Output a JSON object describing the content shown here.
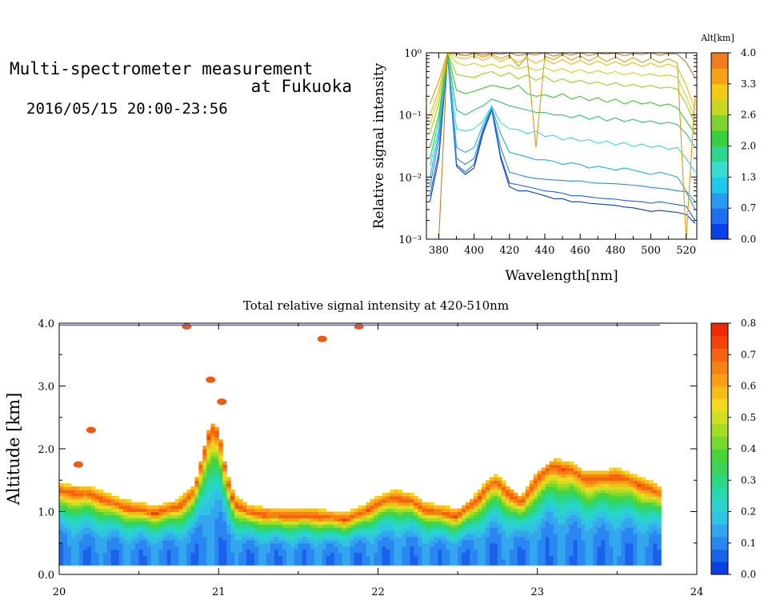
{
  "header": {
    "title_line1": "Multi-spectrometer measurement",
    "title_line2": "at Fukuoka",
    "datetime": "2016/05/15 20:00-23:56"
  },
  "chart_data": [
    {
      "type": "line",
      "title": "",
      "xlabel": "Wavelength[nm]",
      "ylabel": "Relative signal intensity",
      "xlim": [
        373,
        526
      ],
      "ylim": [
        0.001,
        1
      ],
      "yscale": "log",
      "x_ticks": [
        "380",
        "400",
        "420",
        "440",
        "460",
        "480",
        "500",
        "520"
      ],
      "y_ticks": [
        "10⁻³",
        "10⁻²",
        "10⁻¹",
        "10⁰"
      ],
      "colorbar_label": "Alt[km]",
      "colorbar_ticks": [
        "0.0",
        "0.7",
        "1.3",
        "2.0",
        "2.6",
        "3.3",
        "4.0"
      ],
      "x": [
        375,
        380,
        385,
        390,
        395,
        400,
        405,
        410,
        415,
        420,
        425,
        430,
        435,
        440,
        445,
        450,
        455,
        460,
        465,
        470,
        475,
        480,
        485,
        490,
        495,
        500,
        505,
        510,
        515,
        520,
        525
      ],
      "series": [
        {
          "color": "#0b3fc0",
          "values": [
            0.004,
            0.02,
            0.9,
            0.015,
            0.011,
            0.014,
            0.05,
            0.12,
            0.02,
            0.007,
            0.006,
            0.006,
            0.0055,
            0.005,
            0.0045,
            0.0045,
            0.004,
            0.004,
            0.0038,
            0.0037,
            0.0036,
            0.0035,
            0.0033,
            0.0032,
            0.003,
            0.0028,
            0.0029,
            0.0028,
            0.0027,
            0.0025,
            0.0018
          ]
        },
        {
          "color": "#1a63d6",
          "values": [
            0.005,
            0.025,
            0.92,
            0.016,
            0.012,
            0.016,
            0.055,
            0.13,
            0.022,
            0.008,
            0.0075,
            0.007,
            0.0065,
            0.006,
            0.0058,
            0.0055,
            0.005,
            0.005,
            0.0048,
            0.0046,
            0.0045,
            0.0044,
            0.0042,
            0.0041,
            0.004,
            0.0038,
            0.004,
            0.0038,
            0.0036,
            0.0034,
            0.002
          ]
        },
        {
          "color": "#2f87e6",
          "values": [
            0.007,
            0.04,
            0.94,
            0.02,
            0.016,
            0.02,
            0.06,
            0.13,
            0.03,
            0.012,
            0.011,
            0.01,
            0.0095,
            0.0092,
            0.009,
            0.0088,
            0.0086,
            0.0087,
            0.0082,
            0.008,
            0.0079,
            0.0078,
            0.0076,
            0.0074,
            0.0072,
            0.0068,
            0.0066,
            0.0064,
            0.006,
            0.0058,
            0.003
          ]
        },
        {
          "color": "#19b0e4",
          "values": [
            0.01,
            0.05,
            0.95,
            0.03,
            0.025,
            0.03,
            0.07,
            0.13,
            0.05,
            0.025,
            0.023,
            0.021,
            0.019,
            0.019,
            0.018,
            0.016,
            0.017,
            0.016,
            0.014,
            0.015,
            0.014,
            0.013,
            0.014,
            0.013,
            0.012,
            0.011,
            0.012,
            0.011,
            0.01,
            0.006,
            0.004
          ]
        },
        {
          "color": "#3fd8c8",
          "values": [
            0.015,
            0.06,
            0.96,
            0.06,
            0.055,
            0.06,
            0.08,
            0.14,
            0.075,
            0.06,
            0.058,
            0.05,
            0.055,
            0.045,
            0.047,
            0.04,
            0.043,
            0.038,
            0.04,
            0.035,
            0.038,
            0.033,
            0.036,
            0.031,
            0.034,
            0.03,
            0.032,
            0.028,
            0.03,
            0.02,
            0.012
          ]
        },
        {
          "color": "#2cc473",
          "values": [
            0.02,
            0.08,
            0.97,
            0.12,
            0.1,
            0.12,
            0.14,
            0.18,
            0.16,
            0.14,
            0.13,
            0.12,
            0.11,
            0.11,
            0.1,
            0.1,
            0.09,
            0.1,
            0.085,
            0.095,
            0.08,
            0.09,
            0.078,
            0.085,
            0.076,
            0.08,
            0.072,
            0.076,
            0.07,
            0.05,
            0.03
          ]
        },
        {
          "color": "#3cc928",
          "values": [
            0.03,
            0.1,
            0.98,
            0.25,
            0.22,
            0.24,
            0.27,
            0.3,
            0.28,
            0.26,
            0.3,
            0.22,
            0.2,
            0.21,
            0.19,
            0.22,
            0.18,
            0.2,
            0.17,
            0.19,
            0.16,
            0.18,
            0.15,
            0.17,
            0.15,
            0.16,
            0.14,
            0.15,
            0.13,
            0.08,
            0.05
          ]
        },
        {
          "color": "#98d31c",
          "values": [
            0.05,
            0.15,
            0.99,
            0.45,
            0.42,
            0.4,
            0.46,
            0.5,
            0.42,
            0.48,
            0.38,
            0.44,
            0.36,
            0.42,
            0.34,
            0.38,
            0.33,
            0.36,
            0.32,
            0.34,
            0.3,
            0.33,
            0.29,
            0.31,
            0.28,
            0.3,
            0.27,
            0.28,
            0.26,
            0.15,
            0.07
          ]
        },
        {
          "color": "#d4d21a",
          "values": [
            0.07,
            0.2,
            1.0,
            0.7,
            0.62,
            0.68,
            0.6,
            0.66,
            0.57,
            0.64,
            0.55,
            0.6,
            0.52,
            0.58,
            0.5,
            0.56,
            0.48,
            0.54,
            0.47,
            0.52,
            0.46,
            0.5,
            0.44,
            0.48,
            0.43,
            0.46,
            0.42,
            0.44,
            0.4,
            0.2,
            0.09
          ]
        },
        {
          "color": "#eebb10",
          "values": [
            0.1,
            0.25,
            1.0,
            0.85,
            0.8,
            0.9,
            0.75,
            0.88,
            0.72,
            0.85,
            0.7,
            0.82,
            0.68,
            0.8,
            0.66,
            0.78,
            0.65,
            0.76,
            0.64,
            0.74,
            0.63,
            0.72,
            0.62,
            0.7,
            0.6,
            0.68,
            0.59,
            0.66,
            0.58,
            0.3,
            0.12
          ]
        },
        {
          "color": "#e39a16",
          "values": [
            0.15,
            0.35,
            1.0,
            0.95,
            0.9,
            0.97,
            0.85,
            0.95,
            0.8,
            0.92,
            0.6,
            0.9,
            0.03,
            0.88,
            0.78,
            0.93,
            0.76,
            0.9,
            0.74,
            0.88,
            0.72,
            0.86,
            0.71,
            0.84,
            0.7,
            0.82,
            0.69,
            0.8,
            0.68,
            0.001,
            0.2
          ]
        },
        {
          "color": "#cf7c2a",
          "values": [
            0.001,
            0.001,
            1.0,
            0.98,
            0.9,
            1.0,
            0.92,
            0.98,
            0.95,
            1.0,
            0.9,
            0.96,
            0.93,
            1.0,
            0.88,
            0.97,
            0.92,
            1.0,
            0.9,
            0.98,
            0.95,
            0.99,
            0.9,
            0.97,
            0.94,
            1.0,
            0.91,
            0.98,
            0.95,
            0.7,
            0.4
          ]
        }
      ]
    },
    {
      "type": "heatmap",
      "title": "Total relative signal intensity at 420-510nm",
      "xlabel": "",
      "ylabel": "Altitude [km]",
      "xlim": [
        20,
        24
      ],
      "ylim": [
        0,
        4
      ],
      "x_ticks": [
        "20",
        "21",
        "22",
        "23",
        "24"
      ],
      "y_ticks": [
        "0.0",
        "1.0",
        "2.0",
        "3.0",
        "4.0"
      ],
      "colorbar_ticks": [
        "0.0",
        "0.1",
        "0.2",
        "0.3",
        "0.4",
        "0.5",
        "0.6",
        "0.7",
        "0.8"
      ],
      "data_start_alt": 0.15,
      "data_end_time": 23.77,
      "cloud_base": {
        "time": [
          20.0,
          20.2,
          20.4,
          20.6,
          20.75,
          20.85,
          20.9,
          20.95,
          21.0,
          21.05,
          21.1,
          21.2,
          21.4,
          21.6,
          21.8,
          21.9,
          22.0,
          22.1,
          22.2,
          22.3,
          22.4,
          22.5,
          22.6,
          22.7,
          22.75,
          22.8,
          22.9,
          23.0,
          23.1,
          23.2,
          23.3,
          23.4,
          23.5,
          23.6,
          23.7,
          23.77
        ],
        "altitude": [
          1.3,
          1.25,
          1.05,
          0.95,
          1.05,
          1.3,
          1.8,
          2.3,
          2.2,
          1.5,
          1.1,
          0.95,
          0.9,
          0.9,
          0.85,
          0.95,
          1.1,
          1.2,
          1.15,
          1.0,
          0.95,
          0.9,
          1.1,
          1.4,
          1.45,
          1.3,
          1.1,
          1.5,
          1.7,
          1.65,
          1.5,
          1.5,
          1.55,
          1.45,
          1.35,
          1.25
        ]
      },
      "isolated_returns": [
        {
          "time": 20.2,
          "altitude": 2.3
        },
        {
          "time": 20.12,
          "altitude": 1.75
        },
        {
          "time": 20.95,
          "altitude": 3.1
        },
        {
          "time": 21.02,
          "altitude": 2.75
        },
        {
          "time": 21.65,
          "altitude": 3.75
        },
        {
          "time": 20.8,
          "altitude": 3.95
        },
        {
          "time": 21.88,
          "altitude": 3.95
        }
      ]
    }
  ],
  "colors": {
    "colormap": [
      "#0a3fe0",
      "#1a62ea",
      "#2a86f0",
      "#33a6ee",
      "#30c3e2",
      "#2ad3cc",
      "#26d9ad",
      "#2dd683",
      "#39d45a",
      "#4bd43a",
      "#79d82c",
      "#a6dc26",
      "#cfdf22",
      "#f1d91e",
      "#f7bd1a",
      "#f89f17",
      "#f88113",
      "#f6620f",
      "#f4440b",
      "#f02a08"
    ]
  }
}
